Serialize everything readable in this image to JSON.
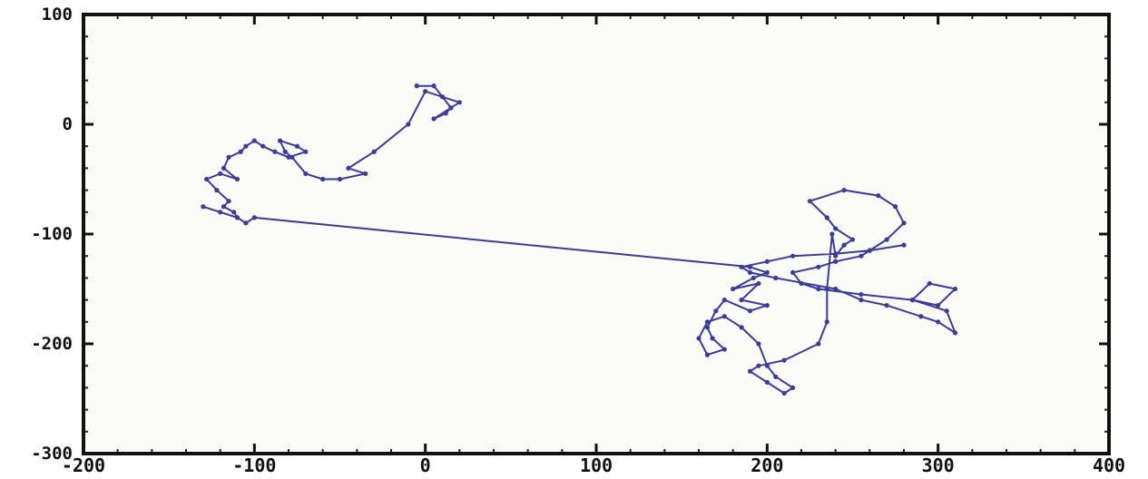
{
  "chart_data": {
    "type": "line",
    "title": "",
    "xlabel": "",
    "ylabel": "",
    "xlim": [
      -200,
      400
    ],
    "ylim": [
      -300,
      100
    ],
    "x_ticks": [
      -200,
      -100,
      0,
      100,
      200,
      300,
      400
    ],
    "y_ticks": [
      100,
      0,
      -100,
      -200,
      -300
    ],
    "x_tick_labels": [
      "-200",
      "-100",
      "0",
      "100",
      "200",
      "300",
      "400"
    ],
    "y_tick_labels": [
      "100",
      "0",
      "-100",
      "-200",
      "-300"
    ],
    "grid": false,
    "legend": "none",
    "series": [
      {
        "color": "#3b3b9a",
        "x": [
          -5,
          5,
          15,
          12,
          5,
          20,
          10,
          0,
          -10,
          -30,
          -45,
          -35,
          -50,
          -60,
          -70,
          -78,
          -82,
          -85,
          -75,
          -70,
          -80,
          -88,
          -95,
          -100,
          -105,
          -108,
          -115,
          -118,
          -110,
          -120,
          -128,
          -122,
          -115,
          -118,
          -112,
          -110,
          -130,
          -120,
          -110,
          -105,
          -100,
          190,
          200,
          192,
          180,
          195,
          185,
          200,
          190,
          175,
          170,
          165,
          168,
          175,
          165,
          160,
          165,
          175,
          185,
          195,
          200,
          205,
          215,
          210,
          200,
          190,
          195,
          210,
          230,
          235,
          235,
          238,
          240,
          245,
          250,
          240,
          235,
          225,
          245,
          265,
          275,
          280,
          270,
          260,
          255,
          240,
          230,
          215,
          220,
          230,
          255,
          285,
          300,
          310,
          295,
          285,
          305,
          310,
          300,
          290,
          270,
          255,
          240,
          205,
          190,
          185,
          200,
          215,
          240,
          260,
          280
        ],
        "y": [
          35,
          35,
          15,
          10,
          5,
          20,
          25,
          30,
          0,
          -25,
          -40,
          -45,
          -50,
          -50,
          -45,
          -30,
          -25,
          -15,
          -20,
          -25,
          -30,
          -25,
          -20,
          -15,
          -20,
          -25,
          -30,
          -40,
          -50,
          -45,
          -50,
          -60,
          -70,
          -75,
          -80,
          -85,
          -75,
          -80,
          -85,
          -90,
          -85,
          -130,
          -135,
          -140,
          -150,
          -145,
          -160,
          -165,
          -170,
          -160,
          -170,
          -185,
          -195,
          -205,
          -210,
          -195,
          -180,
          -175,
          -185,
          -200,
          -220,
          -230,
          -240,
          -245,
          -235,
          -225,
          -220,
          -215,
          -200,
          -180,
          -150,
          -100,
          -120,
          -110,
          -105,
          -95,
          -85,
          -70,
          -60,
          -65,
          -75,
          -90,
          -105,
          -115,
          -120,
          -125,
          -130,
          -135,
          -145,
          -150,
          -155,
          -160,
          -165,
          -150,
          -145,
          -160,
          -170,
          -190,
          -180,
          -175,
          -165,
          -160,
          -150,
          -140,
          -135,
          -130,
          -125,
          -120,
          -118,
          -115,
          -110
        ]
      }
    ]
  }
}
